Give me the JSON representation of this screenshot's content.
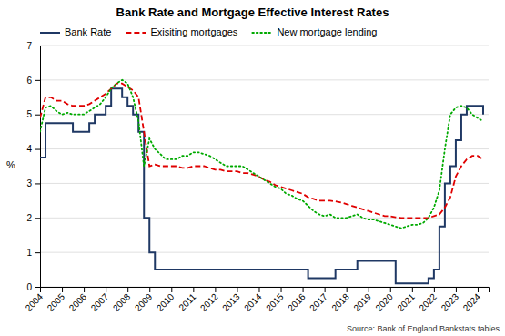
{
  "chart_data": {
    "type": "line",
    "title": "Bank Rate and Mortgage Effective Interest Rates",
    "ylabel": "%",
    "source": "Source: Bank of England Bankstats tables",
    "x": [
      2004.0,
      2004.25,
      2004.5,
      2004.75,
      2005.0,
      2005.25,
      2005.5,
      2005.75,
      2006.0,
      2006.25,
      2006.5,
      2006.75,
      2007.0,
      2007.25,
      2007.5,
      2007.75,
      2008.0,
      2008.25,
      2008.5,
      2008.75,
      2009.0,
      2009.25,
      2009.5,
      2009.75,
      2010.0,
      2010.25,
      2010.5,
      2010.75,
      2011.0,
      2011.25,
      2011.5,
      2011.75,
      2012.0,
      2012.25,
      2012.5,
      2012.75,
      2013.0,
      2013.25,
      2013.5,
      2013.75,
      2014.0,
      2014.25,
      2014.5,
      2014.75,
      2015.0,
      2015.25,
      2015.5,
      2015.75,
      2016.0,
      2016.25,
      2016.5,
      2016.75,
      2017.0,
      2017.25,
      2017.5,
      2017.75,
      2018.0,
      2018.25,
      2018.5,
      2018.75,
      2019.0,
      2019.25,
      2019.5,
      2019.75,
      2020.0,
      2020.25,
      2020.5,
      2020.75,
      2021.0,
      2021.25,
      2021.5,
      2021.75,
      2022.0,
      2022.25,
      2022.5,
      2022.75,
      2023.0,
      2023.25,
      2023.5,
      2023.75,
      2024.0,
      2024.25
    ],
    "series": [
      {
        "name": "Bank Rate",
        "color": "#1f3864",
        "type": "step",
        "line_style": "solid",
        "values": [
          3.75,
          4.75,
          4.75,
          4.75,
          4.75,
          4.75,
          4.5,
          4.5,
          4.5,
          4.75,
          5.0,
          5.0,
          5.25,
          5.75,
          5.75,
          5.5,
          5.25,
          5.0,
          4.5,
          2.0,
          1.0,
          0.5,
          0.5,
          0.5,
          0.5,
          0.5,
          0.5,
          0.5,
          0.5,
          0.5,
          0.5,
          0.5,
          0.5,
          0.5,
          0.5,
          0.5,
          0.5,
          0.5,
          0.5,
          0.5,
          0.5,
          0.5,
          0.5,
          0.5,
          0.5,
          0.5,
          0.5,
          0.5,
          0.5,
          0.25,
          0.25,
          0.25,
          0.25,
          0.25,
          0.5,
          0.5,
          0.5,
          0.5,
          0.75,
          0.75,
          0.75,
          0.75,
          0.75,
          0.75,
          0.75,
          0.1,
          0.1,
          0.1,
          0.1,
          0.1,
          0.1,
          0.25,
          0.5,
          1.75,
          3.0,
          3.5,
          4.25,
          5.0,
          5.25,
          5.25,
          5.25,
          5.0
        ]
      },
      {
        "name": "Exisiting mortgages",
        "color": "#e00000",
        "type": "line",
        "line_style": "dashed",
        "values": [
          4.9,
          5.5,
          5.5,
          5.4,
          5.4,
          5.3,
          5.25,
          5.25,
          5.25,
          5.3,
          5.4,
          5.5,
          5.6,
          5.75,
          5.9,
          5.9,
          5.8,
          5.7,
          5.5,
          4.5,
          3.5,
          3.55,
          3.5,
          3.5,
          3.5,
          3.5,
          3.45,
          3.45,
          3.5,
          3.5,
          3.5,
          3.45,
          3.4,
          3.4,
          3.35,
          3.35,
          3.35,
          3.3,
          3.3,
          3.25,
          3.2,
          3.1,
          3.05,
          2.95,
          2.9,
          2.85,
          2.8,
          2.75,
          2.7,
          2.6,
          2.55,
          2.5,
          2.5,
          2.5,
          2.48,
          2.45,
          2.4,
          2.35,
          2.3,
          2.25,
          2.2,
          2.15,
          2.1,
          2.05,
          2.05,
          2.02,
          2.0,
          2.0,
          2.0,
          2.0,
          2.0,
          2.0,
          2.05,
          2.1,
          2.3,
          2.6,
          3.2,
          3.5,
          3.7,
          3.8,
          3.8,
          3.7
        ]
      },
      {
        "name": "New mortgage lending",
        "color": "#00aa00",
        "type": "line",
        "line_style": "dotted",
        "values": [
          4.5,
          5.2,
          5.25,
          5.1,
          5.0,
          5.05,
          5.0,
          5.0,
          5.0,
          5.1,
          5.2,
          5.3,
          5.5,
          5.75,
          5.9,
          6.0,
          5.9,
          5.5,
          4.8,
          3.5,
          4.3,
          4.0,
          3.85,
          3.7,
          3.7,
          3.7,
          3.8,
          3.8,
          3.9,
          3.9,
          3.85,
          3.8,
          3.7,
          3.6,
          3.5,
          3.5,
          3.5,
          3.5,
          3.4,
          3.3,
          3.2,
          3.1,
          3.0,
          2.9,
          2.85,
          2.7,
          2.65,
          2.55,
          2.5,
          2.35,
          2.2,
          2.1,
          2.05,
          2.1,
          2.0,
          2.0,
          2.0,
          2.05,
          2.1,
          2.0,
          1.95,
          1.95,
          1.9,
          1.85,
          1.8,
          1.75,
          1.7,
          1.75,
          1.8,
          1.8,
          1.85,
          2.0,
          2.3,
          2.8,
          4.0,
          5.0,
          5.2,
          5.25,
          5.2,
          5.0,
          4.9,
          4.8
        ]
      }
    ],
    "xlim": [
      2004,
      2024.5
    ],
    "xticks": [
      2004,
      2005,
      2006,
      2007,
      2008,
      2009,
      2010,
      2011,
      2012,
      2013,
      2014,
      2015,
      2016,
      2017,
      2018,
      2019,
      2020,
      2021,
      2022,
      2023,
      2024
    ],
    "ylim": [
      0,
      7
    ],
    "yticks": [
      0,
      1,
      2,
      3,
      4,
      5,
      6,
      7
    ],
    "grid": true,
    "legend": "top-left"
  }
}
